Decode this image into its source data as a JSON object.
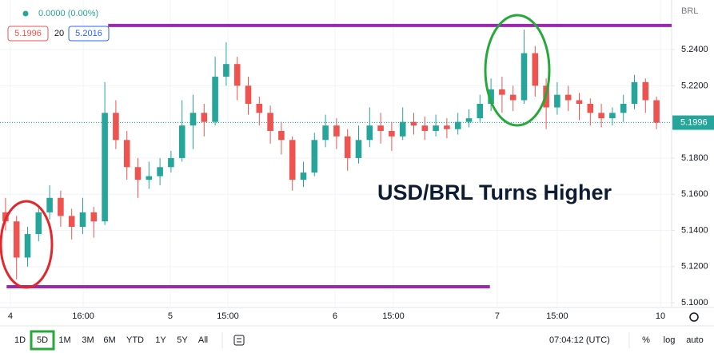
{
  "chart_data": {
    "type": "candlestick",
    "symbol": "BRL",
    "change": "0.0000 (0.00%)",
    "bid": 5.1996,
    "spread": 20,
    "ask": 5.2016,
    "annotation": "USD/BRL Turns Higher",
    "up_color": "#26a69a",
    "down_color": "#ef5350",
    "grid": true,
    "xlim": [
      -0.5,
      60.37
    ],
    "ylim": [
      5.0974,
      5.2674
    ],
    "yticks": [
      {
        "value": 5.1,
        "label": "5.1000"
      },
      {
        "value": 5.12,
        "label": "5.1200"
      },
      {
        "value": 5.14,
        "label": "5.1400"
      },
      {
        "value": 5.16,
        "label": "5.1600"
      },
      {
        "value": 5.18,
        "label": "5.1800"
      },
      {
        "value": 5.2,
        "label": "5.2000"
      },
      {
        "value": 5.22,
        "label": "5.2200"
      },
      {
        "value": 5.24,
        "label": "5.2400"
      }
    ],
    "xticks": [
      {
        "value": 0.44,
        "label": "4"
      },
      {
        "value": 7.04,
        "label": "16:00"
      },
      {
        "value": 14.93,
        "label": "5"
      },
      {
        "value": 20.15,
        "label": "15:00"
      },
      {
        "value": 29.86,
        "label": "6"
      },
      {
        "value": 35.15,
        "label": "15:00"
      },
      {
        "value": 44.57,
        "label": "7"
      },
      {
        "value": 50.0,
        "label": "15:00"
      },
      {
        "value": 59.36,
        "label": "10"
      }
    ],
    "hlines": [
      {
        "value": 5.2533,
        "from": 9.3,
        "to": 60.37,
        "color": "#9c27b0"
      },
      {
        "value": 5.1089,
        "from": 0.1,
        "to": 43.9,
        "color": "#9c27b0"
      }
    ],
    "open": [
      5.15,
      5.145,
      5.125,
      5.138,
      5.15,
      5.158,
      5.148,
      5.142,
      5.15,
      5.145,
      5.205,
      5.19,
      5.175,
      5.168,
      5.17,
      5.175,
      5.18,
      5.198,
      5.205,
      5.2,
      5.225,
      5.232,
      5.22,
      5.21,
      5.205,
      5.195,
      5.19,
      5.168,
      5.172,
      5.19,
      5.198,
      5.192,
      5.18,
      5.19,
      5.198,
      5.195,
      5.192,
      5.2,
      5.198,
      5.195,
      5.198,
      5.196,
      5.2,
      5.202,
      5.21,
      5.218,
      5.215,
      5.212,
      5.238,
      5.22,
      5.208,
      5.215,
      5.212,
      5.21,
      5.205,
      5.202,
      5.205,
      5.21,
      5.222,
      5.212
    ],
    "high": [
      5.158,
      5.148,
      5.142,
      5.154,
      5.165,
      5.162,
      5.152,
      5.158,
      5.153,
      5.222,
      5.212,
      5.195,
      5.18,
      5.178,
      5.18,
      5.184,
      5.212,
      5.215,
      5.21,
      5.236,
      5.244,
      5.236,
      5.225,
      5.214,
      5.209,
      5.2,
      5.192,
      5.178,
      5.194,
      5.204,
      5.202,
      5.196,
      5.198,
      5.208,
      5.205,
      5.2,
      5.208,
      5.205,
      5.203,
      5.204,
      5.202,
      5.205,
      5.207,
      5.215,
      5.224,
      5.225,
      5.22,
      5.251,
      5.242,
      5.224,
      5.222,
      5.22,
      5.216,
      5.213,
      5.21,
      5.208,
      5.215,
      5.226,
      5.224,
      5.214
    ],
    "low": [
      5.14,
      5.113,
      5.12,
      5.134,
      5.146,
      5.142,
      5.135,
      5.138,
      5.136,
      5.143,
      5.185,
      5.168,
      5.158,
      5.163,
      5.165,
      5.172,
      5.178,
      5.185,
      5.192,
      5.198,
      5.22,
      5.212,
      5.204,
      5.198,
      5.188,
      5.182,
      5.162,
      5.164,
      5.17,
      5.186,
      5.185,
      5.173,
      5.177,
      5.186,
      5.188,
      5.184,
      5.19,
      5.193,
      5.19,
      5.192,
      5.191,
      5.193,
      5.197,
      5.2,
      5.206,
      5.205,
      5.206,
      5.21,
      5.214,
      5.196,
      5.204,
      5.206,
      5.201,
      5.198,
      5.197,
      5.198,
      5.2,
      5.207,
      5.205,
      5.196
    ],
    "close": [
      5.145,
      5.125,
      5.138,
      5.15,
      5.158,
      5.148,
      5.142,
      5.15,
      5.145,
      5.205,
      5.19,
      5.175,
      5.168,
      5.17,
      5.175,
      5.18,
      5.198,
      5.205,
      5.2,
      5.225,
      5.232,
      5.22,
      5.21,
      5.205,
      5.195,
      5.19,
      5.168,
      5.172,
      5.19,
      5.198,
      5.192,
      5.18,
      5.19,
      5.198,
      5.195,
      5.192,
      5.2,
      5.198,
      5.195,
      5.198,
      5.196,
      5.2,
      5.202,
      5.21,
      5.218,
      5.215,
      5.212,
      5.238,
      5.22,
      5.208,
      5.215,
      5.212,
      5.21,
      5.205,
      5.202,
      5.205,
      5.21,
      5.222,
      5.212,
      5.1996
    ]
  },
  "toolbar": {
    "ranges": [
      "1D",
      "5D",
      "1M",
      "3M",
      "6M",
      "YTD",
      "1Y",
      "5Y",
      "All"
    ],
    "clock": "07:04:12 (UTC)",
    "options": [
      "%",
      "log",
      "auto"
    ]
  }
}
